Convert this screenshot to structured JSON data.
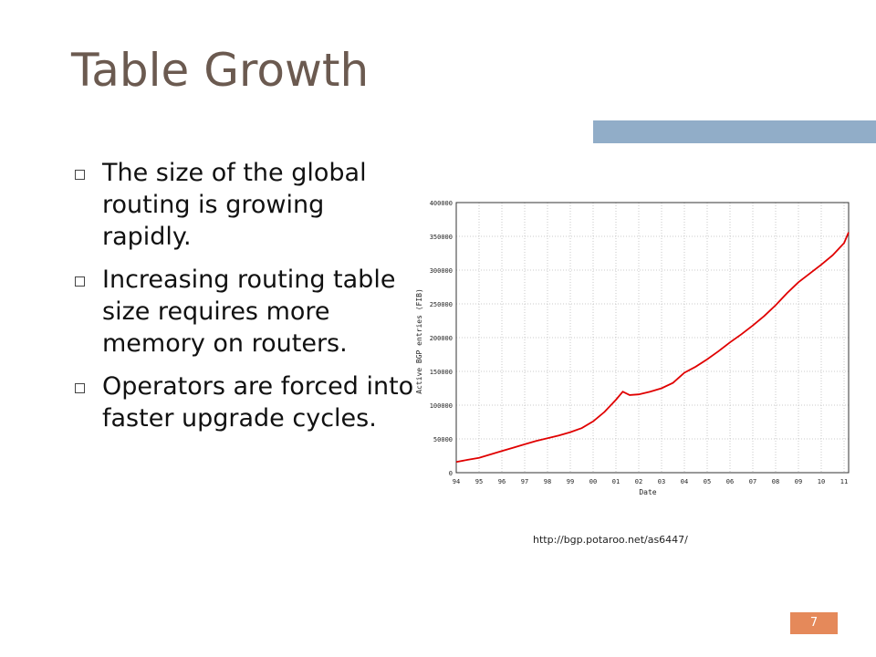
{
  "slide": {
    "title": "Table Growth",
    "bullets": [
      "The size of the global routing is growing rapidly.",
      "Increasing routing table size requires more memory on routers.",
      "Operators are forced into faster upgrade cycles."
    ],
    "source_url": "http://bgp.potaroo.net/as6447/",
    "page_number": "7"
  },
  "colors": {
    "title": "#6b5a50",
    "title_bar": "#91adc8",
    "page_badge": "#e5895a",
    "series": "#e00000"
  },
  "chart_data": {
    "type": "line",
    "xlabel": "Date",
    "ylabel": "Active BGP entries (FIB)",
    "x_ticks": [
      "94",
      "95",
      "96",
      "97",
      "98",
      "99",
      "00",
      "01",
      "02",
      "03",
      "04",
      "05",
      "06",
      "07",
      "08",
      "09",
      "10",
      "11"
    ],
    "y_ticks": [
      0,
      50000,
      100000,
      150000,
      200000,
      250000,
      300000,
      350000,
      400000
    ],
    "ylim": [
      0,
      400000
    ],
    "xlim": [
      1994,
      2011.2
    ],
    "grid": true,
    "series": [
      {
        "x": [
          1994.0,
          1994.5,
          1995.0,
          1995.5,
          1996.0,
          1996.5,
          1997.0,
          1997.5,
          1998.0,
          1998.5,
          1999.0,
          1999.5,
          2000.0,
          2000.5,
          2001.0,
          2001.3,
          2001.6,
          2002.0,
          2002.5,
          2003.0,
          2003.5,
          2004.0,
          2004.5,
          2005.0,
          2005.5,
          2006.0,
          2006.5,
          2007.0,
          2007.5,
          2008.0,
          2008.5,
          2009.0,
          2009.5,
          2010.0,
          2010.5,
          2011.0,
          2011.2
        ],
        "y": [
          16000,
          19000,
          22000,
          27000,
          32000,
          37000,
          42000,
          47000,
          51000,
          55000,
          60000,
          66000,
          76000,
          90000,
          108000,
          120000,
          115000,
          116000,
          120000,
          125000,
          133000,
          148000,
          157000,
          168000,
          180000,
          193000,
          205000,
          218000,
          232000,
          248000,
          266000,
          282000,
          295000,
          308000,
          322000,
          340000,
          356000
        ]
      }
    ]
  }
}
